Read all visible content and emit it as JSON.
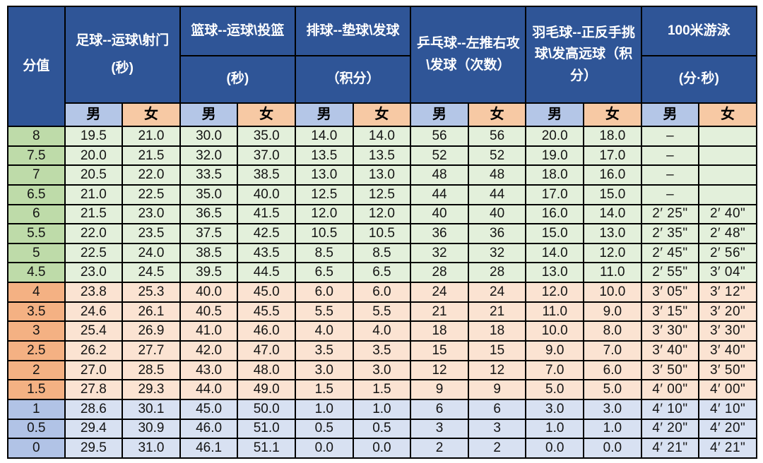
{
  "table": {
    "score_header": "分值",
    "gender_labels": [
      "男",
      "女"
    ],
    "groups": [
      {
        "id": "football",
        "title": "足球--运球\\射门",
        "subtitle": "(秒)",
        "split": false
      },
      {
        "id": "basketball",
        "title": "篮球--运球\\投篮",
        "subtitle": "(秒)",
        "split": true
      },
      {
        "id": "volleyball",
        "title": "排球--垫球\\发球",
        "subtitle": "（积分）",
        "split": true
      },
      {
        "id": "tabletennis",
        "title": "乒乓球--左推右攻\\发球（次数）",
        "subtitle": "",
        "split": false
      },
      {
        "id": "badminton",
        "title": "羽毛球--正反手挑球\\发高远球（积分）",
        "subtitle": "",
        "split": false
      },
      {
        "id": "swimming",
        "title": "100米游泳",
        "subtitle": "(分·秒)",
        "split": true
      }
    ],
    "rows": [
      {
        "score": "8",
        "section": "green",
        "cells": [
          "19.5",
          "21.0",
          "30.0",
          "35.0",
          "14.0",
          "14.0",
          "56",
          "56",
          "20.0",
          "18.0",
          "–",
          ""
        ]
      },
      {
        "score": "7.5",
        "section": "green",
        "cells": [
          "20.0",
          "21.5",
          "32.0",
          "37.0",
          "13.5",
          "13.5",
          "52",
          "52",
          "19.0",
          "17.0",
          "–",
          ""
        ]
      },
      {
        "score": "7",
        "section": "green",
        "cells": [
          "20.5",
          "22.0",
          "33.5",
          "38.5",
          "13.0",
          "13.0",
          "48",
          "48",
          "18.0",
          "16.0",
          "–",
          ""
        ]
      },
      {
        "score": "6.5",
        "section": "green",
        "cells": [
          "21.0",
          "22.5",
          "35.0",
          "40.0",
          "12.5",
          "12.5",
          "44",
          "44",
          "17.0",
          "15.0",
          "–",
          ""
        ]
      },
      {
        "score": "6",
        "section": "green",
        "cells": [
          "21.5",
          "23.0",
          "36.5",
          "41.5",
          "12.0",
          "12.0",
          "40",
          "40",
          "16.0",
          "14.0",
          "2′ 25\"",
          "2′ 40\""
        ]
      },
      {
        "score": "5.5",
        "section": "green",
        "cells": [
          "22.0",
          "23.5",
          "37.5",
          "42.5",
          "10.5",
          "10.5",
          "36",
          "36",
          "15.0",
          "13.0",
          "2′ 35\"",
          "2′ 48\""
        ]
      },
      {
        "score": "5",
        "section": "green",
        "cells": [
          "22.5",
          "24.0",
          "38.5",
          "43.5",
          "8.5",
          "8.5",
          "32",
          "32",
          "14.0",
          "12.0",
          "2′ 45\"",
          "2′ 56\""
        ]
      },
      {
        "score": "4.5",
        "section": "green",
        "cells": [
          "23.0",
          "24.5",
          "39.5",
          "44.5",
          "6.5",
          "6.5",
          "28",
          "28",
          "13.0",
          "11.0",
          "2′ 55\"",
          "3′ 04\""
        ]
      },
      {
        "score": "4",
        "section": "orange",
        "cells": [
          "23.8",
          "25.3",
          "40.0",
          "45.0",
          "6.0",
          "6.0",
          "24",
          "24",
          "12.0",
          "10.0",
          "3′ 05\"",
          "3′ 12\""
        ]
      },
      {
        "score": "3.5",
        "section": "orange",
        "cells": [
          "24.6",
          "26.1",
          "40.5",
          "45.5",
          "5.5",
          "5.5",
          "21",
          "21",
          "11.0",
          "9.0",
          "3′ 15\"",
          "3′ 20\""
        ]
      },
      {
        "score": "3",
        "section": "orange",
        "cells": [
          "25.4",
          "26.9",
          "41.0",
          "46.0",
          "4.0",
          "4.0",
          "18",
          "18",
          "10.0",
          "8.0",
          "3′ 30\"",
          "3′ 30\""
        ]
      },
      {
        "score": "2.5",
        "section": "orange",
        "cells": [
          "26.2",
          "27.7",
          "42.0",
          "47.0",
          "3.5",
          "3.5",
          "15",
          "15",
          "9.0",
          "7.0",
          "3′ 40\"",
          "3′ 40\""
        ]
      },
      {
        "score": "2",
        "section": "orange",
        "cells": [
          "27.0",
          "28.5",
          "43.0",
          "48.0",
          "3.0",
          "3.0",
          "12",
          "12",
          "7.0",
          "6.0",
          "3′ 50\"",
          "3′ 50\""
        ]
      },
      {
        "score": "1.5",
        "section": "orange",
        "cells": [
          "27.8",
          "29.3",
          "44.0",
          "49.0",
          "1.5",
          "1.5",
          "9",
          "9",
          "5.0",
          "5.0",
          "4′ 00\"",
          "4′ 00\""
        ]
      },
      {
        "score": "1",
        "section": "blue",
        "cells": [
          "28.6",
          "30.1",
          "45.0",
          "50.0",
          "1.0",
          "1.0",
          "6",
          "6",
          "3.0",
          "3.0",
          "4′ 10\"",
          "4′ 10\""
        ]
      },
      {
        "score": "0.5",
        "section": "blue",
        "cells": [
          "29.4",
          "30.9",
          "46.0",
          "51.0",
          "0.5",
          "0.5",
          "3",
          "3",
          "1.0",
          "1.0",
          "4′ 20\"",
          "4′ 20\""
        ]
      },
      {
        "score": "0",
        "section": "blue",
        "cells": [
          "29.5",
          "31.0",
          "46.1",
          "51.1",
          "0.0",
          "0.0",
          "2",
          "2",
          "0.0",
          "0.0",
          "4′ 21\"",
          "4′ 21\""
        ]
      }
    ],
    "colors": {
      "header_navy": "#2F5597",
      "male_blue": "#B4C6E7",
      "female_peach": "#F7C9A4",
      "green_score": "#BEDBA9",
      "green_cell": "#E3F0DB",
      "orange_score": "#F4B183",
      "orange_cell": "#FBE3D2",
      "blue_score": "#B1C3E6",
      "blue_cell": "#D8E1F2",
      "border": "#000000"
    }
  }
}
